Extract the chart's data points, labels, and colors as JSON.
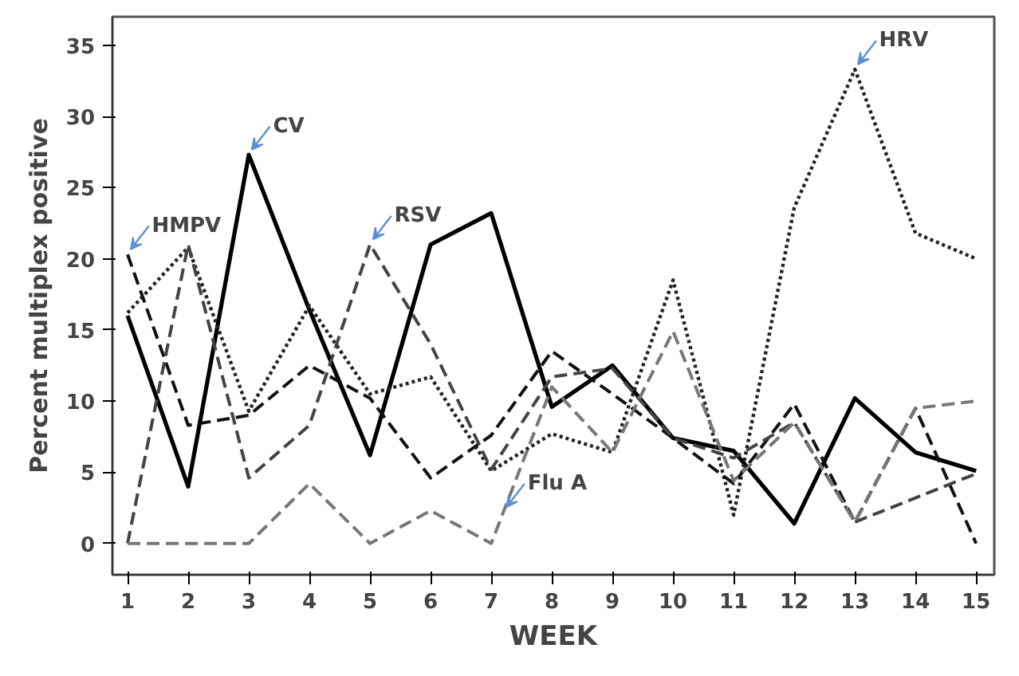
{
  "chart_data": {
    "type": "line",
    "xlabel": "WEEK",
    "ylabel": "Percent multiplex positive",
    "x": [
      1,
      2,
      3,
      4,
      5,
      6,
      7,
      8,
      9,
      10,
      11,
      12,
      13,
      14,
      15
    ],
    "xlim": [
      0.75,
      15.3
    ],
    "ylim": [
      -2.2,
      37
    ],
    "xticks": [
      1,
      2,
      3,
      4,
      5,
      6,
      7,
      8,
      9,
      10,
      11,
      12,
      13,
      14,
      15
    ],
    "yticks": [
      0,
      5,
      10,
      15,
      20,
      25,
      30,
      35
    ],
    "grid": false,
    "series": [
      {
        "color": "#000000",
        "line_style": "solid",
        "values": [
          16,
          4,
          27.3,
          16.4,
          6.2,
          21,
          23.2,
          9.6,
          12.5,
          7.4,
          6.5,
          1.4,
          10.2,
          6.4,
          5.1
        ]
      },
      {
        "color": "#222222",
        "line_style": "dotted",
        "values": [
          16.2,
          20.8,
          9.3,
          16.7,
          10.5,
          11.7,
          5.1,
          7.7,
          6.4,
          18.5,
          2.0,
          23.6,
          33.3,
          21.8,
          20.0
        ]
      },
      {
        "color": "#111111",
        "line_style": "dashed",
        "values": [
          20.3,
          8.3,
          9.0,
          12.5,
          10.2,
          4.6,
          7.6,
          13.5,
          10.5,
          7.4,
          4.2,
          9.8,
          1.5,
          9.5,
          0
        ]
      },
      {
        "color": "#444444",
        "line_style": "dashed",
        "values": [
          0,
          21,
          4.6,
          8.3,
          21,
          14,
          5.2,
          11.7,
          12.3,
          7.4,
          6.0,
          8.5,
          1.5,
          3.2,
          4.9
        ]
      },
      {
        "color": "#777777",
        "line_style": "dashed",
        "values": [
          0,
          0,
          0,
          4.2,
          0,
          2.3,
          0,
          11.0,
          6.4,
          14.9,
          4.4,
          8.5,
          1.5,
          9.5,
          10
        ]
      }
    ],
    "annotations": [
      {
        "text": "HMPV",
        "x": 1,
        "y": 20.3
      },
      {
        "text": "CV",
        "x": 3,
        "y": 27.3
      },
      {
        "text": "RSV",
        "x": 5,
        "y": 21
      },
      {
        "text": "HRV",
        "x": 13,
        "y": 33.3
      },
      {
        "text": "Flu A",
        "x": 7.2,
        "y": 2.2
      }
    ]
  }
}
